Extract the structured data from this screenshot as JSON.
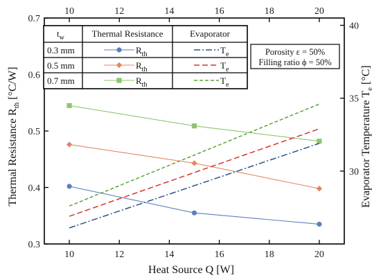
{
  "chart_data": {
    "type": "line",
    "x_axis": {
      "label": "Heat Source Q [W]",
      "range": [
        9,
        21
      ],
      "ticks": [
        10,
        12,
        14,
        16,
        18,
        20
      ]
    },
    "x_top_axis": {
      "ticks": [
        10,
        12,
        14,
        16,
        18,
        20
      ]
    },
    "y_left": {
      "label_main": "Thermal Resistance R",
      "label_sub": "th",
      "label_unit": " [°C/W]",
      "range": [
        0.3,
        0.7
      ],
      "ticks": [
        0.3,
        0.4,
        0.5,
        0.6,
        0.7
      ],
      "tick_labels": [
        "0.3",
        "0.4",
        "0.5",
        "0.6",
        "0.7"
      ]
    },
    "y_right": {
      "label_main": "Evaporator Temperature T",
      "label_sub": "e",
      "label_unit": " [°C]",
      "range": [
        25,
        40.5
      ],
      "ticks": [
        30,
        35,
        40
      ],
      "tick_labels": [
        "30",
        "35",
        "40"
      ]
    },
    "grid": false,
    "series": [
      {
        "id": "rth-03",
        "name": "R_th (0.3 mm)",
        "axis": "left",
        "color": "#5b7fbe",
        "marker": "circle",
        "dash": "",
        "x": [
          10,
          15,
          20
        ],
        "y": [
          0.402,
          0.355,
          0.335
        ]
      },
      {
        "id": "rth-05",
        "name": "R_th (0.5 mm)",
        "axis": "left",
        "color": "#e2875f",
        "marker": "diamond",
        "dash": "",
        "x": [
          10,
          15,
          20
        ],
        "y": [
          0.476,
          0.443,
          0.398
        ]
      },
      {
        "id": "rth-07",
        "name": "R_th (0.7 mm)",
        "axis": "left",
        "color": "#8fc56d",
        "marker": "square",
        "dash": "",
        "x": [
          10,
          15,
          20
        ],
        "y": [
          0.545,
          0.509,
          0.482
        ]
      },
      {
        "id": "te-03",
        "name": "T_e (0.3 mm)",
        "axis": "right",
        "color": "#2c4f8f",
        "marker": "none",
        "dash": "9,3,2,3",
        "x": [
          10,
          20
        ],
        "y": [
          26.1,
          31.9
        ]
      },
      {
        "id": "te-05",
        "name": "T_e (0.5 mm)",
        "axis": "right",
        "color": "#d6332a",
        "marker": "none",
        "dash": "8,4",
        "x": [
          10,
          20
        ],
        "y": [
          26.9,
          32.9
        ]
      },
      {
        "id": "te-07",
        "name": "T_e (0.7 mm)",
        "axis": "right",
        "color": "#5ca336",
        "marker": "none",
        "dash": "5,3",
        "x": [
          10,
          20
        ],
        "y": [
          27.6,
          34.6
        ]
      }
    ],
    "legend": {
      "placement": "top-left",
      "header": {
        "tw_main": "t",
        "tw_sub": "w",
        "thermal": "Thermal Resistance",
        "evap": "Evaporator"
      },
      "rows": [
        {
          "thickness": "0.3 mm",
          "rth_main": "R",
          "rth_sub": "th",
          "te_main": "T",
          "te_sub": "e",
          "rth_series": "rth-03",
          "te_series": "te-03"
        },
        {
          "thickness": "0.5 mm",
          "rth_main": "R",
          "rth_sub": "th",
          "te_main": "T",
          "te_sub": "e",
          "rth_series": "rth-05",
          "te_series": "te-05"
        },
        {
          "thickness": "0.7 mm",
          "rth_main": "R",
          "rth_sub": "th",
          "te_main": "T",
          "te_sub": "e",
          "rth_series": "rth-07",
          "te_series": "te-07"
        }
      ]
    },
    "annotation": {
      "line1": "Porosity ε = 50%",
      "line2": "Filling ratio ϕ = 50%"
    }
  }
}
